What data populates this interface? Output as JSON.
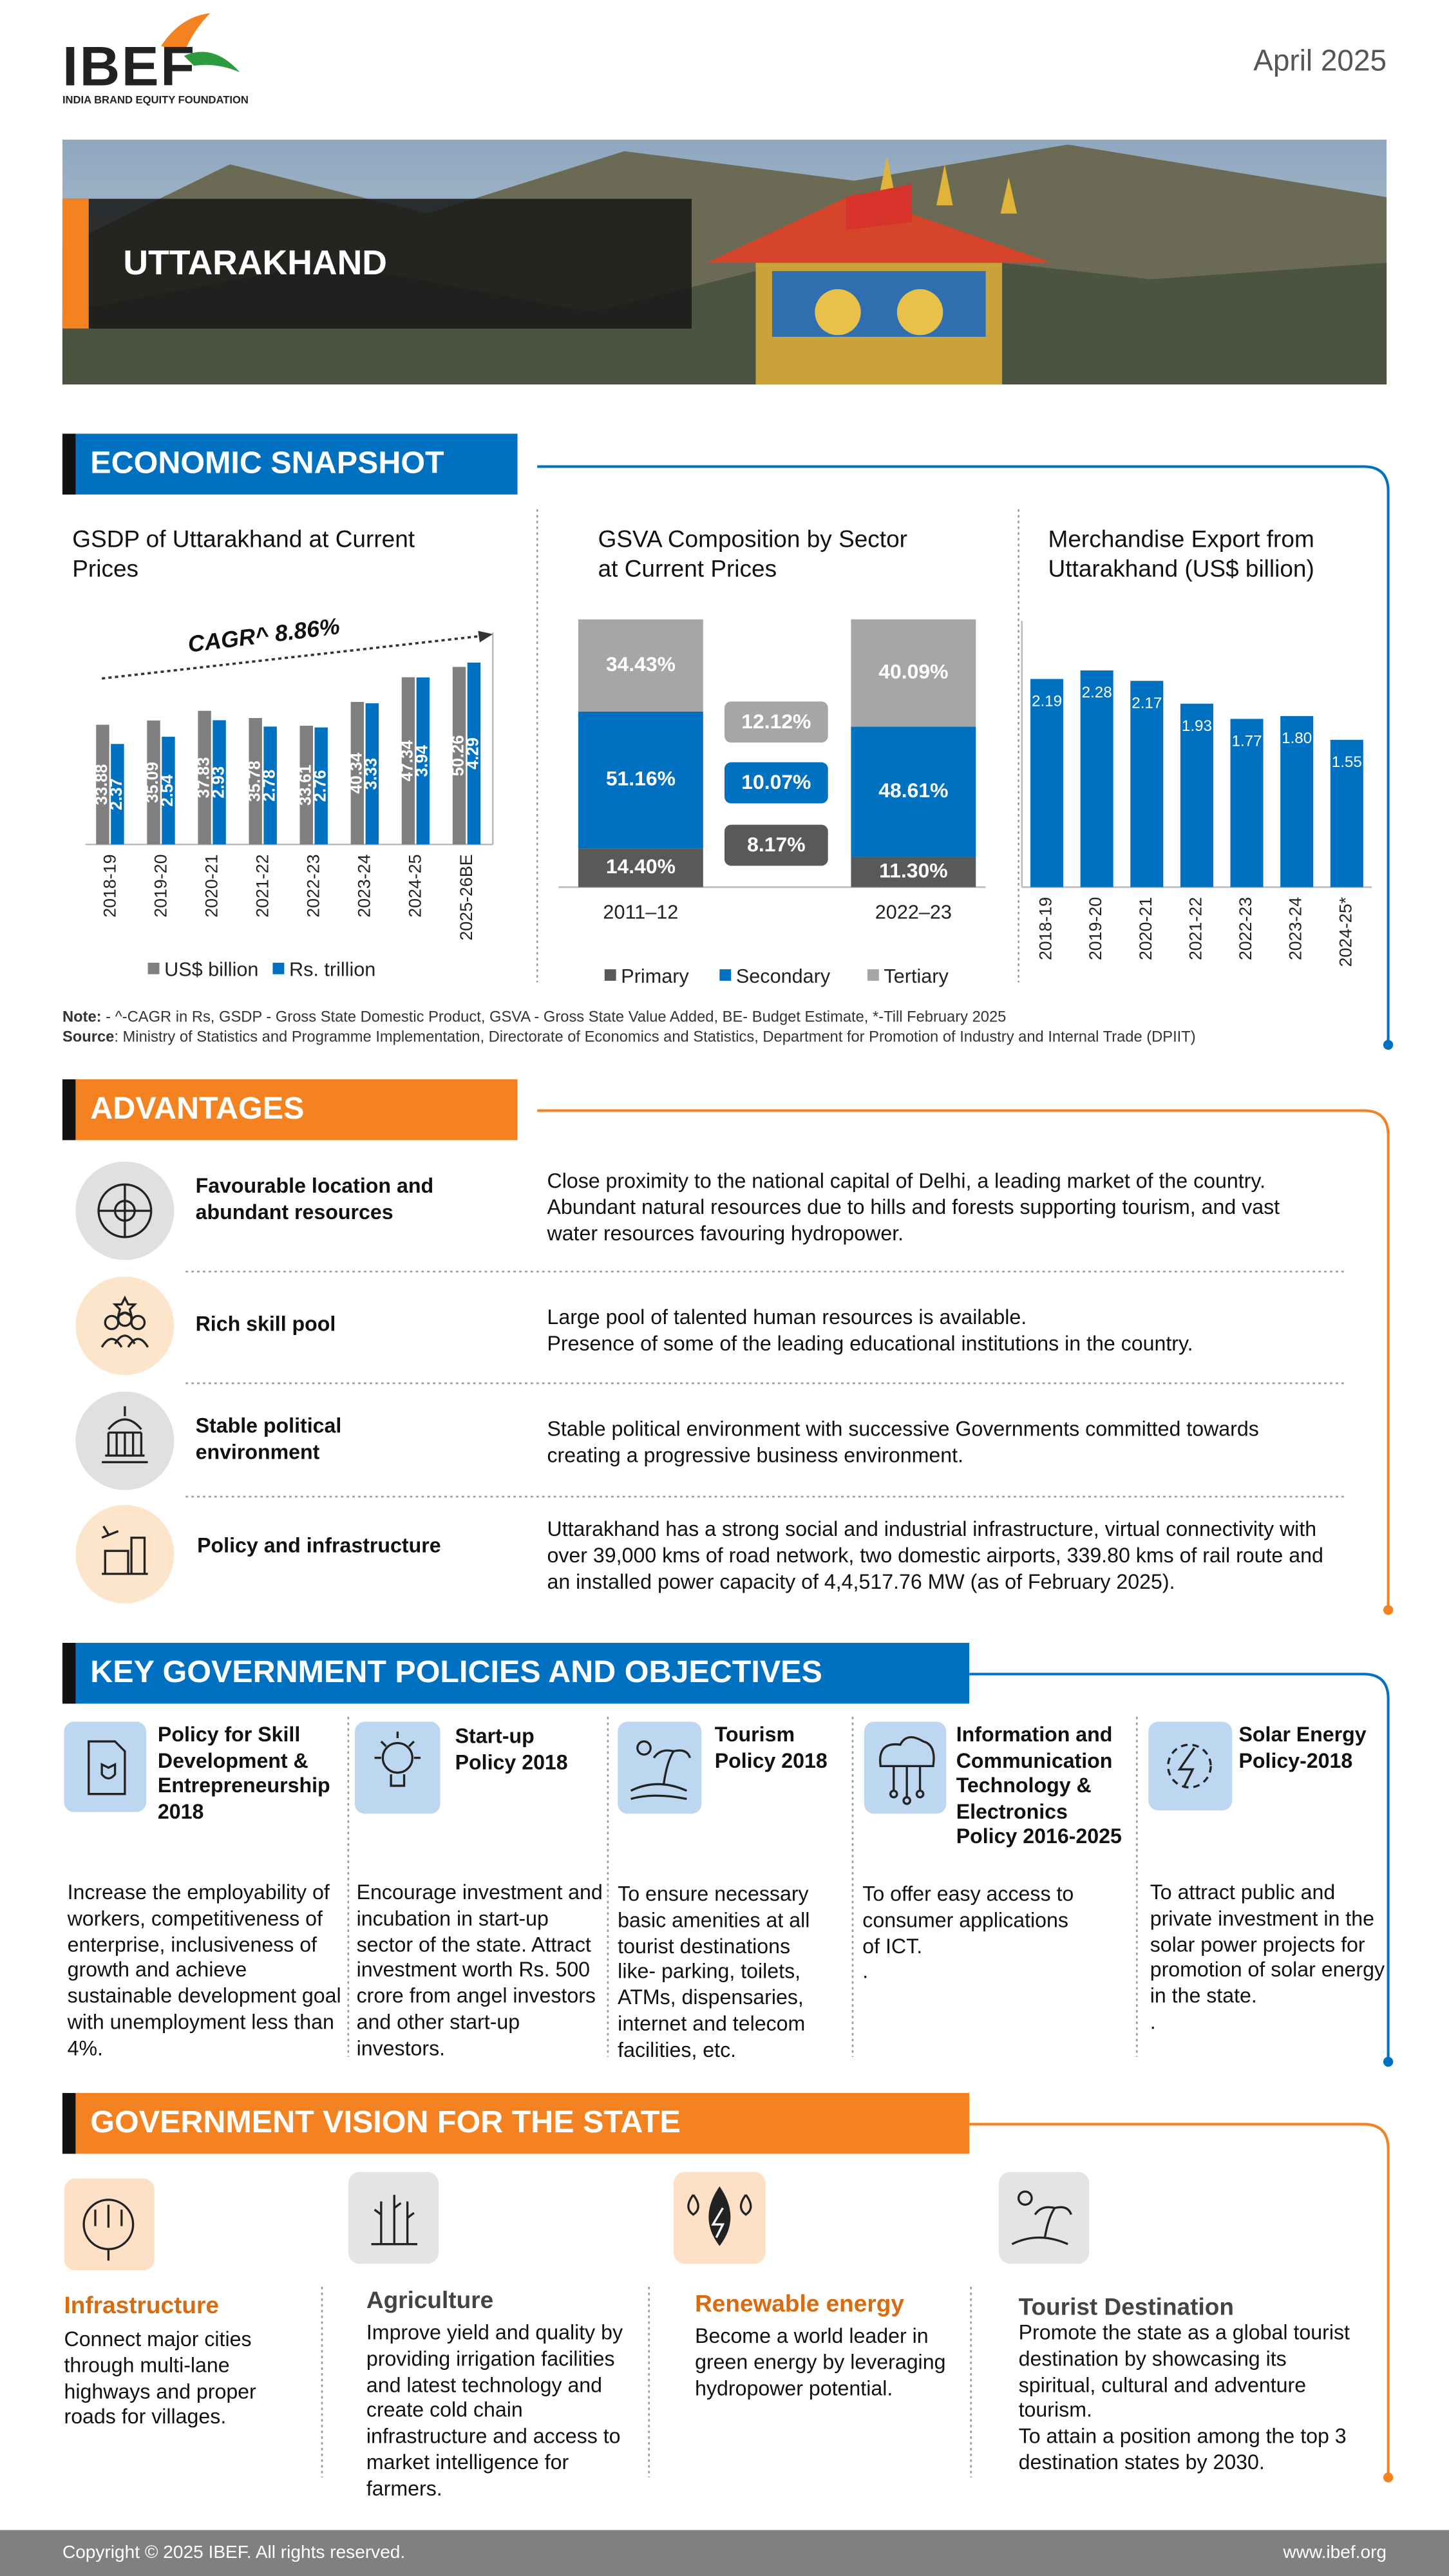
{
  "header": {
    "logo": "IBEF",
    "logo_tagline": "INDIA BRAND EQUITY FOUNDATION",
    "date": "April 2025",
    "title": "UTTARAKHAND"
  },
  "economic_snapshot": {
    "heading": "ECONOMIC SNAPSHOT",
    "note": {
      "label": "Note:",
      "text": " - ^-CAGR in Rs, GSDP - Gross State Domestic Product, GSVA - Gross State Value Added, BE- Budget Estimate, *-Till February 2025"
    },
    "source": {
      "label": "Source",
      "text": ": Ministry of Statistics and Programme Implementation, Directorate of Economics and Statistics, Department for Promotion of Industry and Internal Trade (DPIIT)"
    }
  },
  "chart_data": [
    {
      "type": "bar",
      "title": "GSDP of Uttarakhand at Current Prices",
      "annotation": "CAGR^ 8.86%",
      "categories": [
        "2018-19",
        "2019-20",
        "2020-21",
        "2021-22",
        "2022-23",
        "2023-24",
        "2024-25",
        "2025-26BE"
      ],
      "series": [
        {
          "name": "US$ billion",
          "color": "#7f7f7f",
          "values": [
            33.88,
            35.09,
            37.83,
            35.78,
            33.61,
            40.34,
            47.34,
            50.26
          ]
        },
        {
          "name": "Rs. trillion",
          "color": "#0070c0",
          "axis": "y2",
          "values": [
            2.37,
            2.54,
            2.93,
            2.78,
            2.76,
            3.33,
            3.94,
            4.29
          ]
        }
      ],
      "ylim": [
        0,
        60
      ],
      "y2lim": [
        0,
        5
      ],
      "legend": "bottom"
    },
    {
      "type": "stacked_bar",
      "title": "GSVA Composition by Sector at Current Prices",
      "categories": [
        "2011–12",
        "2022–23"
      ],
      "series": [
        {
          "name": "Primary",
          "color": "#595959",
          "values": [
            14.4,
            11.3
          ],
          "value_labels": [
            "14.40%",
            "11.30%"
          ],
          "growth_label": "8.17%"
        },
        {
          "name": "Secondary",
          "color": "#0070c0",
          "values": [
            51.16,
            48.61
          ],
          "value_labels": [
            "51.16%",
            "48.61%"
          ],
          "growth_label": "10.07%"
        },
        {
          "name": "Tertiary",
          "color": "#a6a6a6",
          "values": [
            34.43,
            40.09
          ],
          "value_labels": [
            "34.43%",
            "40.09%"
          ],
          "growth_label": "12.12%"
        }
      ],
      "ylim": [
        0,
        100
      ],
      "legend": "bottom"
    },
    {
      "type": "bar",
      "title": "Merchandise Export from Uttarakhand (US$ billion)",
      "categories": [
        "2018-19",
        "2019-20",
        "2020-21",
        "2021-22",
        "2022-23",
        "2023-24",
        "2024-25*"
      ],
      "values": [
        2.19,
        2.28,
        2.17,
        1.93,
        1.77,
        1.8,
        1.55
      ],
      "value_labels": [
        "2.19",
        "2.28",
        "2.17",
        "1.93",
        "1.77",
        "1.80",
        "1.55"
      ],
      "color": "#0070c0",
      "ylim": [
        0,
        2.8
      ]
    }
  ],
  "advantages": {
    "heading": "ADVANTAGES",
    "items": [
      {
        "title": "Favourable location and abundant resources",
        "text": "Close proximity to the national capital of Delhi, a leading market of the country. Abundant natural resources due to hills and forests supporting tourism, and vast water resources favouring hydropower."
      },
      {
        "title": "Rich skill pool",
        "text": "Large pool of talented human resources is available.\nPresence of some of the leading educational institutions in the country."
      },
      {
        "title": "Stable political environment",
        "text": "Stable political environment with successive Governments committed towards creating a progressive business environment."
      },
      {
        "title": "Policy and infrastructure",
        "text": "Uttarakhand has a strong social and industrial infrastructure, virtual connectivity with over 39,000 kms of road network, two domestic airports, 339.80 kms of rail route and an installed power capacity of 4,4,517.76 MW (as of February 2025)."
      }
    ]
  },
  "policies": {
    "heading": "KEY GOVERNMENT POLICIES AND OBJECTIVES",
    "items": [
      {
        "title": "Policy for Skill Development & Entrepreneurship 2018",
        "text": "Increase the employability of workers, competitiveness of enterprise, inclusiveness of growth and achieve sustainable development goal with unemployment less than 4%."
      },
      {
        "title": "Start-up Policy 2018",
        "text": "Encourage investment and incubation in start-up sector of the state. Attract investment worth Rs. 500 crore from angel investors and other start-up investors."
      },
      {
        "title": "Tourism Policy 2018",
        "text": "To ensure necessary basic amenities at all tourist destinations like- parking, toilets, ATMs, dispensaries, internet and telecom facilities, etc."
      },
      {
        "title": "Information and Communication Technology & Electronics Policy 2016-2025",
        "text": "To offer easy access to consumer applications of ICT.\n."
      },
      {
        "title": "Solar Energy Policy-2018",
        "text": "To attract public and private investment in the solar power projects for promotion of solar energy in the state.\n."
      }
    ]
  },
  "vision": {
    "heading": "GOVERNMENT VISION FOR THE STATE",
    "items": [
      {
        "title": "Infrastructure",
        "text": "Connect major cities through multi-lane highways and proper roads for villages."
      },
      {
        "title": "Agriculture",
        "text": "Improve yield and quality by providing irrigation facilities and latest technology and create cold chain infrastructure and access to market intelligence for farmers."
      },
      {
        "title": "Renewable energy",
        "text": "Become a world leader in green energy by leveraging hydropower potential."
      },
      {
        "title": "Tourist Destination",
        "text": "Promote the state as a global tourist destination by showcasing its spiritual, cultural and adventure tourism.\nTo attain a position among the top 3 destination states by 2030."
      }
    ]
  },
  "footer": {
    "copyright": "Copyright © 2025 IBEF. All rights reserved.",
    "website": "www.ibef.org"
  }
}
